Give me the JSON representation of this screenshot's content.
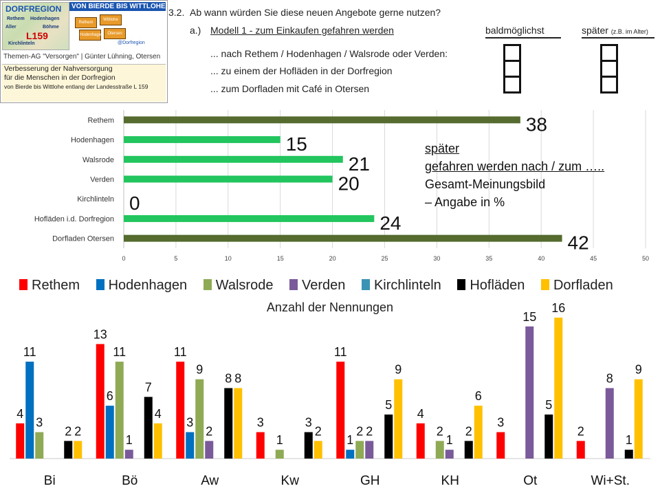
{
  "header": {
    "section_number": "3.2.",
    "question": "Ab wann würden Sie diese neuen Angebote gerne nutzen?",
    "sub_label": "a.)",
    "model": "Modell 1 - zum Einkaufen gefahren werden",
    "col_asap": "baldmöglichst",
    "col_later": "später",
    "col_later_note": "(z.B. im Alter)",
    "options": [
      "...     nach Rethem / Hodenhagen / Walsrode oder Verden:",
      "...     zu einem der Hofläden in der Dorfregion",
      "...     zum Dorfladen mit Café in Otersen"
    ]
  },
  "logo": {
    "title": "DORFREGION",
    "banner": "VON BIERDE BIS WITTLOHE",
    "road": "L159",
    "facebook": "@Dorfregion",
    "map_places": [
      "Rethem",
      "Hodenhagen",
      "Aller",
      "Böhme",
      "Otersen",
      "Wittlohe",
      "Kirchlinteln"
    ],
    "ag_line": "Themen-AG \"Versorgen\" | Günter Lühning, Otersen",
    "strip_lines": [
      "Verbesserung der Nahversorgung",
      "für die Menschen in der Dorfregion",
      "von Bierde bis Wittlohe entlang der Landesstraße L 159"
    ],
    "colors": {
      "blue": "#1b55b0",
      "orange": "#e89a2a"
    }
  },
  "annotation": {
    "line1": "später",
    "line2": "gefahren werden nach / zum …..",
    "line3": "Gesamt-Meinungsbild",
    "line4": "– Angabe in %"
  },
  "legend": [
    {
      "label": "Rethem",
      "color": "#ff0000"
    },
    {
      "label": "Hodenhagen",
      "color": "#0070c0"
    },
    {
      "label": "Walsrode",
      "color": "#8faa55"
    },
    {
      "label": "Verden",
      "color": "#7a5a9a"
    },
    {
      "label": "Kirchlinteln",
      "color": "#3a93b4"
    },
    {
      "label": "Hofläden",
      "color": "#000000"
    },
    {
      "label": "Dorfladen",
      "color": "#ffc000"
    }
  ],
  "chart_data": [
    {
      "type": "bar",
      "orientation": "horizontal",
      "categories": [
        "Rethem",
        "Hodenhagen",
        "Walsrode",
        "Verden",
        "Kirchlinteln",
        "Hofläden i.d. Dorfregion",
        "Dorfladen Otersen"
      ],
      "values": [
        38,
        15,
        21,
        20,
        0,
        24,
        42
      ],
      "colors": [
        "#556b2f",
        "#22c55e",
        "#22c55e",
        "#22c55e",
        "#22c55e",
        "#22c55e",
        "#556b2f"
      ],
      "xlim": [
        0,
        50
      ],
      "xticks": [
        "0",
        "5",
        "10",
        "15",
        "20",
        "25",
        "30",
        "35",
        "40",
        "45",
        "50"
      ],
      "grid": true
    },
    {
      "type": "bar",
      "title": "Anzahl der Nennungen",
      "categories": [
        "Bi",
        "Bö",
        "Aw",
        "Kw",
        "GH",
        "KH",
        "Ot",
        "Wi+St."
      ],
      "series": [
        {
          "name": "Rethem",
          "values": [
            4,
            13,
            11,
            3,
            11,
            4,
            3,
            2
          ]
        },
        {
          "name": "Hodenhagen",
          "values": [
            11,
            6,
            3,
            null,
            1,
            null,
            null,
            null
          ]
        },
        {
          "name": "Walsrode",
          "values": [
            3,
            11,
            9,
            1,
            2,
            2,
            null,
            null
          ]
        },
        {
          "name": "Verden",
          "values": [
            null,
            1,
            2,
            null,
            2,
            1,
            15,
            8
          ]
        },
        {
          "name": "Kirchlinteln",
          "values": [
            null,
            null,
            null,
            null,
            null,
            null,
            null,
            null
          ]
        },
        {
          "name": "Hofläden",
          "values": [
            2,
            7,
            8,
            3,
            5,
            2,
            5,
            1
          ]
        },
        {
          "name": "Dorfladen",
          "values": [
            2,
            4,
            8,
            2,
            9,
            6,
            16,
            9
          ]
        }
      ],
      "ylim": [
        0,
        16
      ],
      "grid": false
    }
  ]
}
